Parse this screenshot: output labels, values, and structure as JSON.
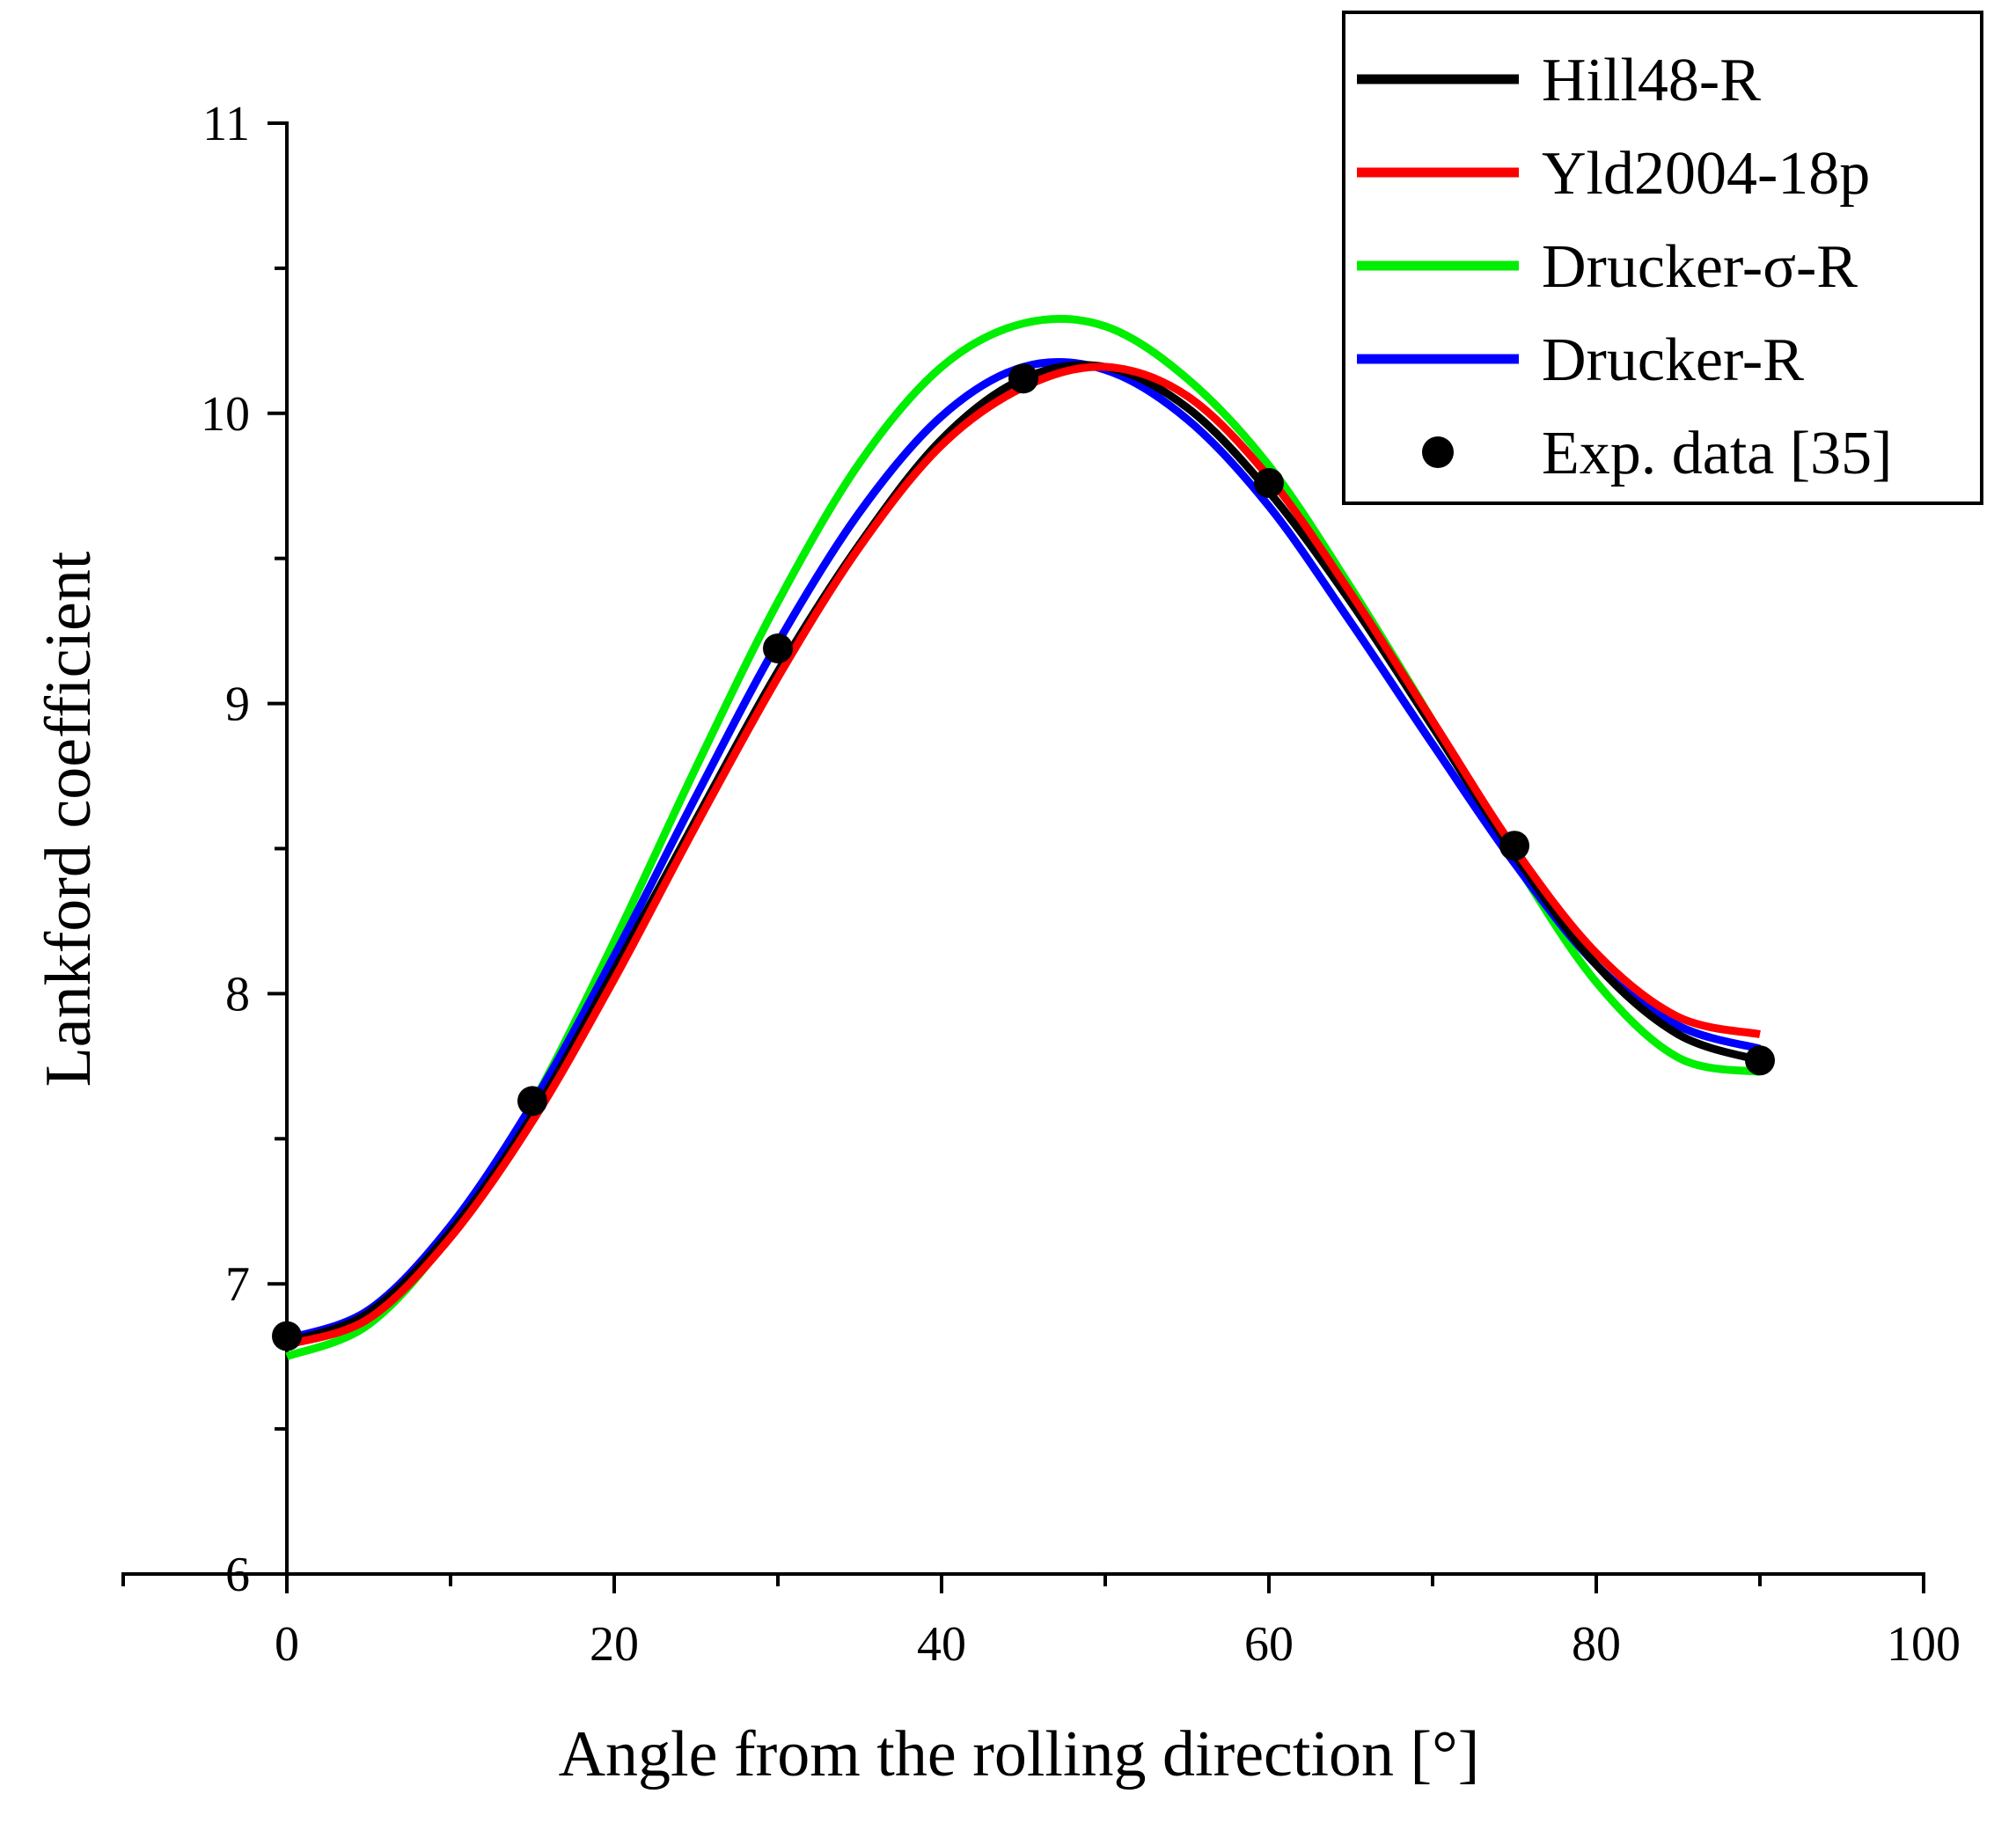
{
  "chart_data": {
    "type": "line",
    "title": "",
    "xlabel": "Angle from the rolling direction [°]",
    "ylabel": "Lankford coefficient",
    "xlim": [
      -10,
      100
    ],
    "ylim": [
      6,
      11
    ],
    "xticks": [
      0,
      20,
      40,
      60,
      80,
      100
    ],
    "xtick_labels": [
      "0",
      "20",
      "40",
      "60",
      "80",
      "100"
    ],
    "yticks": [
      6,
      7,
      8,
      9,
      10,
      11
    ],
    "ytick_labels": [
      "6",
      "7",
      "8",
      "9",
      "10",
      "11"
    ],
    "grid": false,
    "legend_position": "top-right",
    "series": [
      {
        "name": "Hill48-R",
        "color": "#000000",
        "kind": "line",
        "x": [
          0,
          5,
          10,
          15,
          20,
          25,
          30,
          35,
          40,
          45,
          50,
          55,
          60,
          65,
          70,
          75,
          80,
          85,
          90
        ],
        "y": [
          6.8,
          6.9,
          7.18,
          7.58,
          8.08,
          8.6,
          9.11,
          9.55,
          9.91,
          10.12,
          10.16,
          10.02,
          9.73,
          9.35,
          8.92,
          8.48,
          8.1,
          7.86,
          7.77
        ]
      },
      {
        "name": "Yld2004-18p",
        "color": "#ff0000",
        "kind": "line",
        "x": [
          0,
          5,
          10,
          15,
          20,
          25,
          30,
          35,
          40,
          45,
          50,
          55,
          60,
          65,
          70,
          75,
          80,
          85,
          90
        ],
        "y": [
          6.79,
          6.88,
          7.16,
          7.56,
          8.05,
          8.58,
          9.09,
          9.54,
          9.89,
          10.09,
          10.16,
          10.06,
          9.78,
          9.38,
          8.94,
          8.5,
          8.14,
          7.92,
          7.86
        ]
      },
      {
        "name": "Drucker-σ-R",
        "color": "#00ee00",
        "kind": "line",
        "x": [
          0,
          5,
          10,
          15,
          20,
          25,
          30,
          35,
          40,
          45,
          50,
          55,
          60,
          65,
          70,
          75,
          80,
          85,
          90
        ],
        "y": [
          6.75,
          6.86,
          7.17,
          7.62,
          8.18,
          8.78,
          9.35,
          9.83,
          10.16,
          10.31,
          10.3,
          10.12,
          9.82,
          9.4,
          8.94,
          8.46,
          8.04,
          7.78,
          7.73
        ]
      },
      {
        "name": "Drucker-R",
        "color": "#0000ff",
        "kind": "line",
        "x": [
          0,
          5,
          10,
          15,
          20,
          25,
          30,
          35,
          40,
          45,
          50,
          55,
          60,
          65,
          70,
          75,
          80,
          85,
          90
        ],
        "y": [
          6.81,
          6.91,
          7.2,
          7.62,
          8.13,
          8.68,
          9.21,
          9.66,
          9.99,
          10.16,
          10.15,
          9.98,
          9.68,
          9.28,
          8.86,
          8.45,
          8.1,
          7.89,
          7.81
        ]
      },
      {
        "name": "Exp. data [35]",
        "color": "#000000",
        "kind": "scatter",
        "x": [
          0,
          15,
          30,
          45,
          60,
          75,
          90
        ],
        "y": [
          6.82,
          7.63,
          9.19,
          10.12,
          9.76,
          8.51,
          7.77
        ]
      }
    ]
  }
}
